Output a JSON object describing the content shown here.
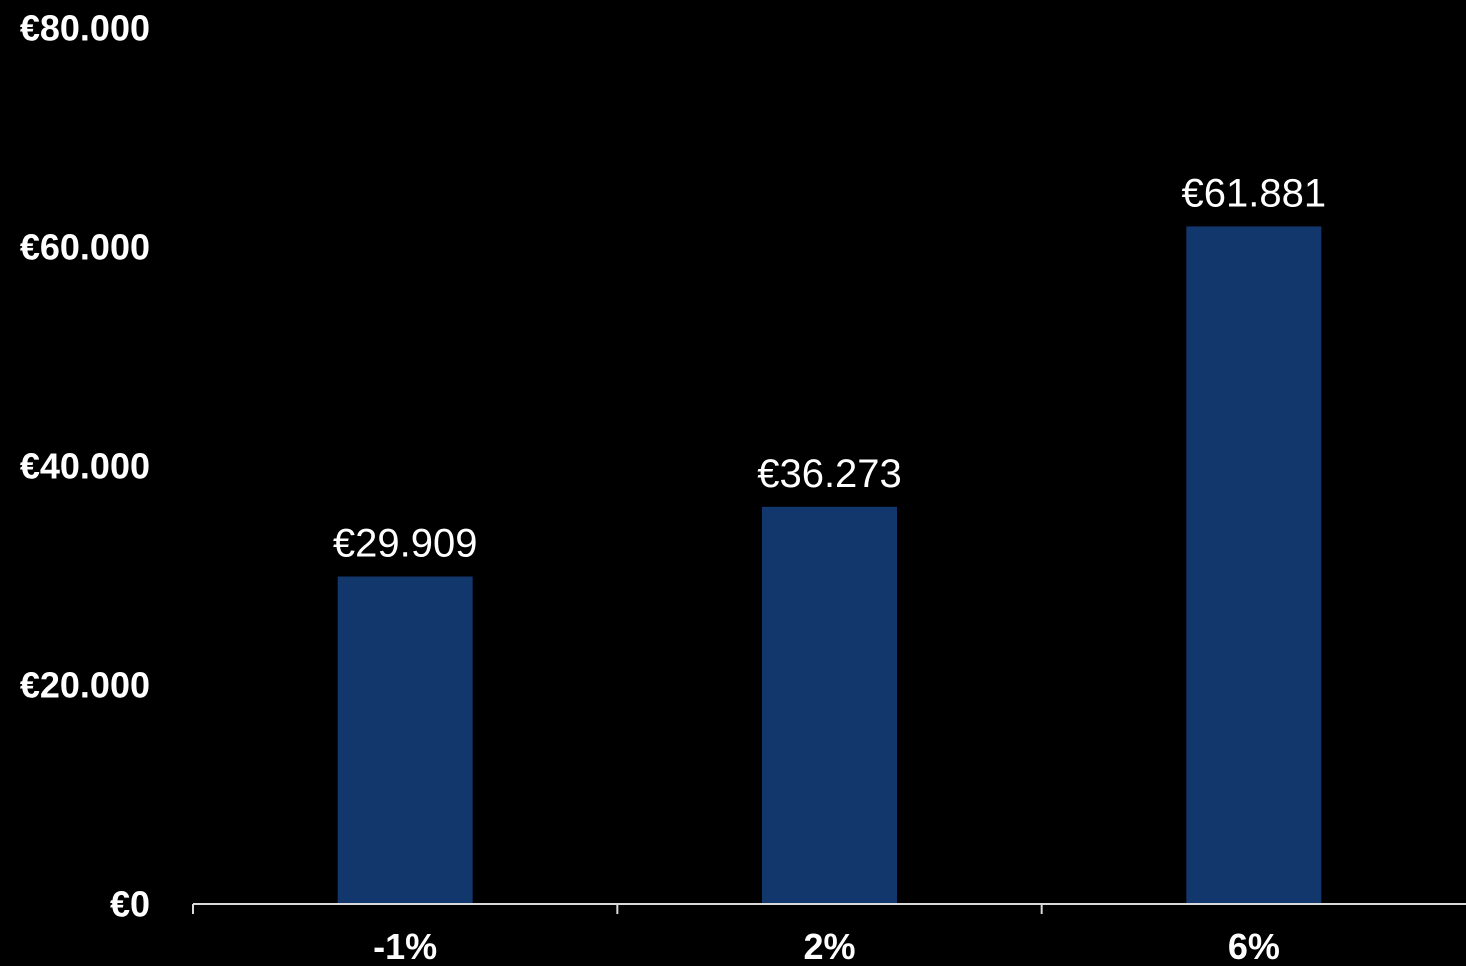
{
  "colors": {
    "background": "#000000",
    "bar": "#12376D",
    "text": "#FFFFFF",
    "axis": "#D9D9D9"
  },
  "chart_data": {
    "type": "bar",
    "categories": [
      "-1%",
      "2%",
      "6%"
    ],
    "values": [
      29909,
      36273,
      61881
    ],
    "data_labels": [
      "€29.909",
      "€36.273",
      "€61.881"
    ],
    "ylim": [
      0,
      80000
    ],
    "yticks": [
      0,
      20000,
      40000,
      60000,
      80000
    ],
    "ytick_labels": [
      "€0",
      "€20.000",
      "€40.000",
      "€60.000",
      "€80.000"
    ],
    "grid": false,
    "legend": "none",
    "title": "",
    "xlabel": "",
    "ylabel": ""
  }
}
